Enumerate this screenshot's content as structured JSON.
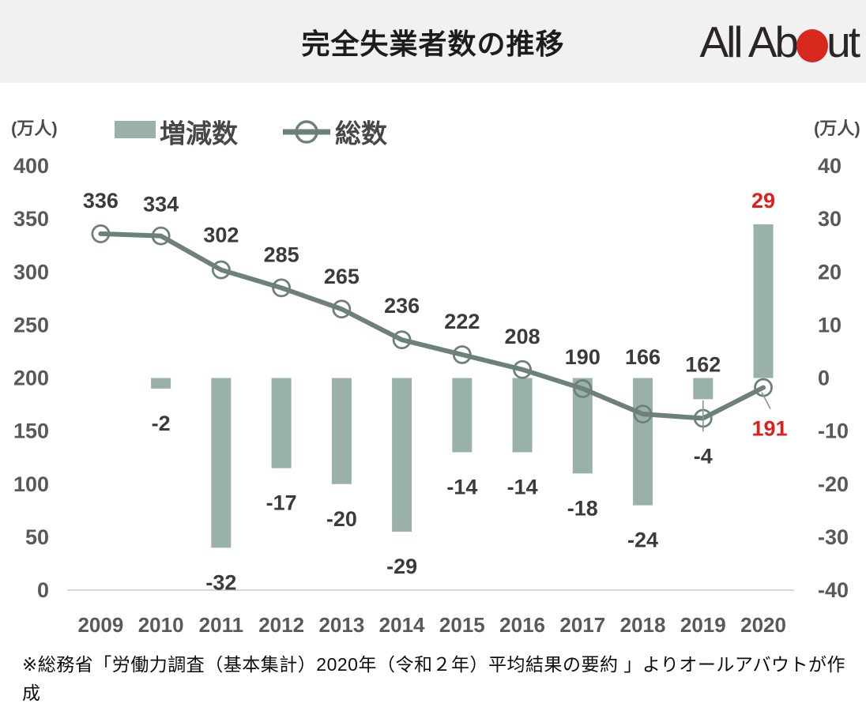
{
  "header": {
    "title": "完全失業者数の推移",
    "logo": {
      "text_before": "All Ab",
      "text_after": "ut",
      "dot_color": "#d7281e"
    }
  },
  "legend": [
    {
      "type": "bar",
      "label": "増減数"
    },
    {
      "type": "line",
      "label": "総数"
    }
  ],
  "chart_data": {
    "type": "combo",
    "title": "完全失業者数の推移",
    "categories": [
      "2009",
      "2010",
      "2011",
      "2012",
      "2013",
      "2014",
      "2015",
      "2016",
      "2017",
      "2018",
      "2019",
      "2020"
    ],
    "series": [
      {
        "name": "増減数",
        "type": "bar",
        "axis": "right",
        "values": [
          null,
          -2,
          -32,
          -17,
          -20,
          -29,
          -14,
          -14,
          -18,
          -24,
          -4,
          29
        ],
        "color": "#9ab1ab"
      },
      {
        "name": "総数",
        "type": "line",
        "axis": "left",
        "values": [
          336,
          334,
          302,
          285,
          265,
          236,
          222,
          208,
          190,
          166,
          162,
          191
        ],
        "color": "#6d817a"
      }
    ],
    "left_axis": {
      "unit": "(万人)",
      "ticks": [
        400,
        350,
        300,
        250,
        200,
        150,
        100,
        50,
        0
      ],
      "min": 0,
      "max": 400,
      "grid": false
    },
    "right_axis": {
      "unit": "(万人)",
      "ticks": [
        40,
        30,
        20,
        10,
        0,
        -10,
        -20,
        -30,
        -40
      ],
      "min": -40,
      "max": 40,
      "grid": false
    },
    "highlight_year": "2020",
    "highlight_color": "#df1f1e",
    "label_color": "#3b3b3b",
    "tick_color": "#595959",
    "axis_line_color": "#d9d9d9",
    "legend_position": "top"
  },
  "footer": {
    "source": "※総務省「労働力調査（基本集計）2020年（令和２年）平均結果の要約 」よりオールアバウトが作成"
  }
}
